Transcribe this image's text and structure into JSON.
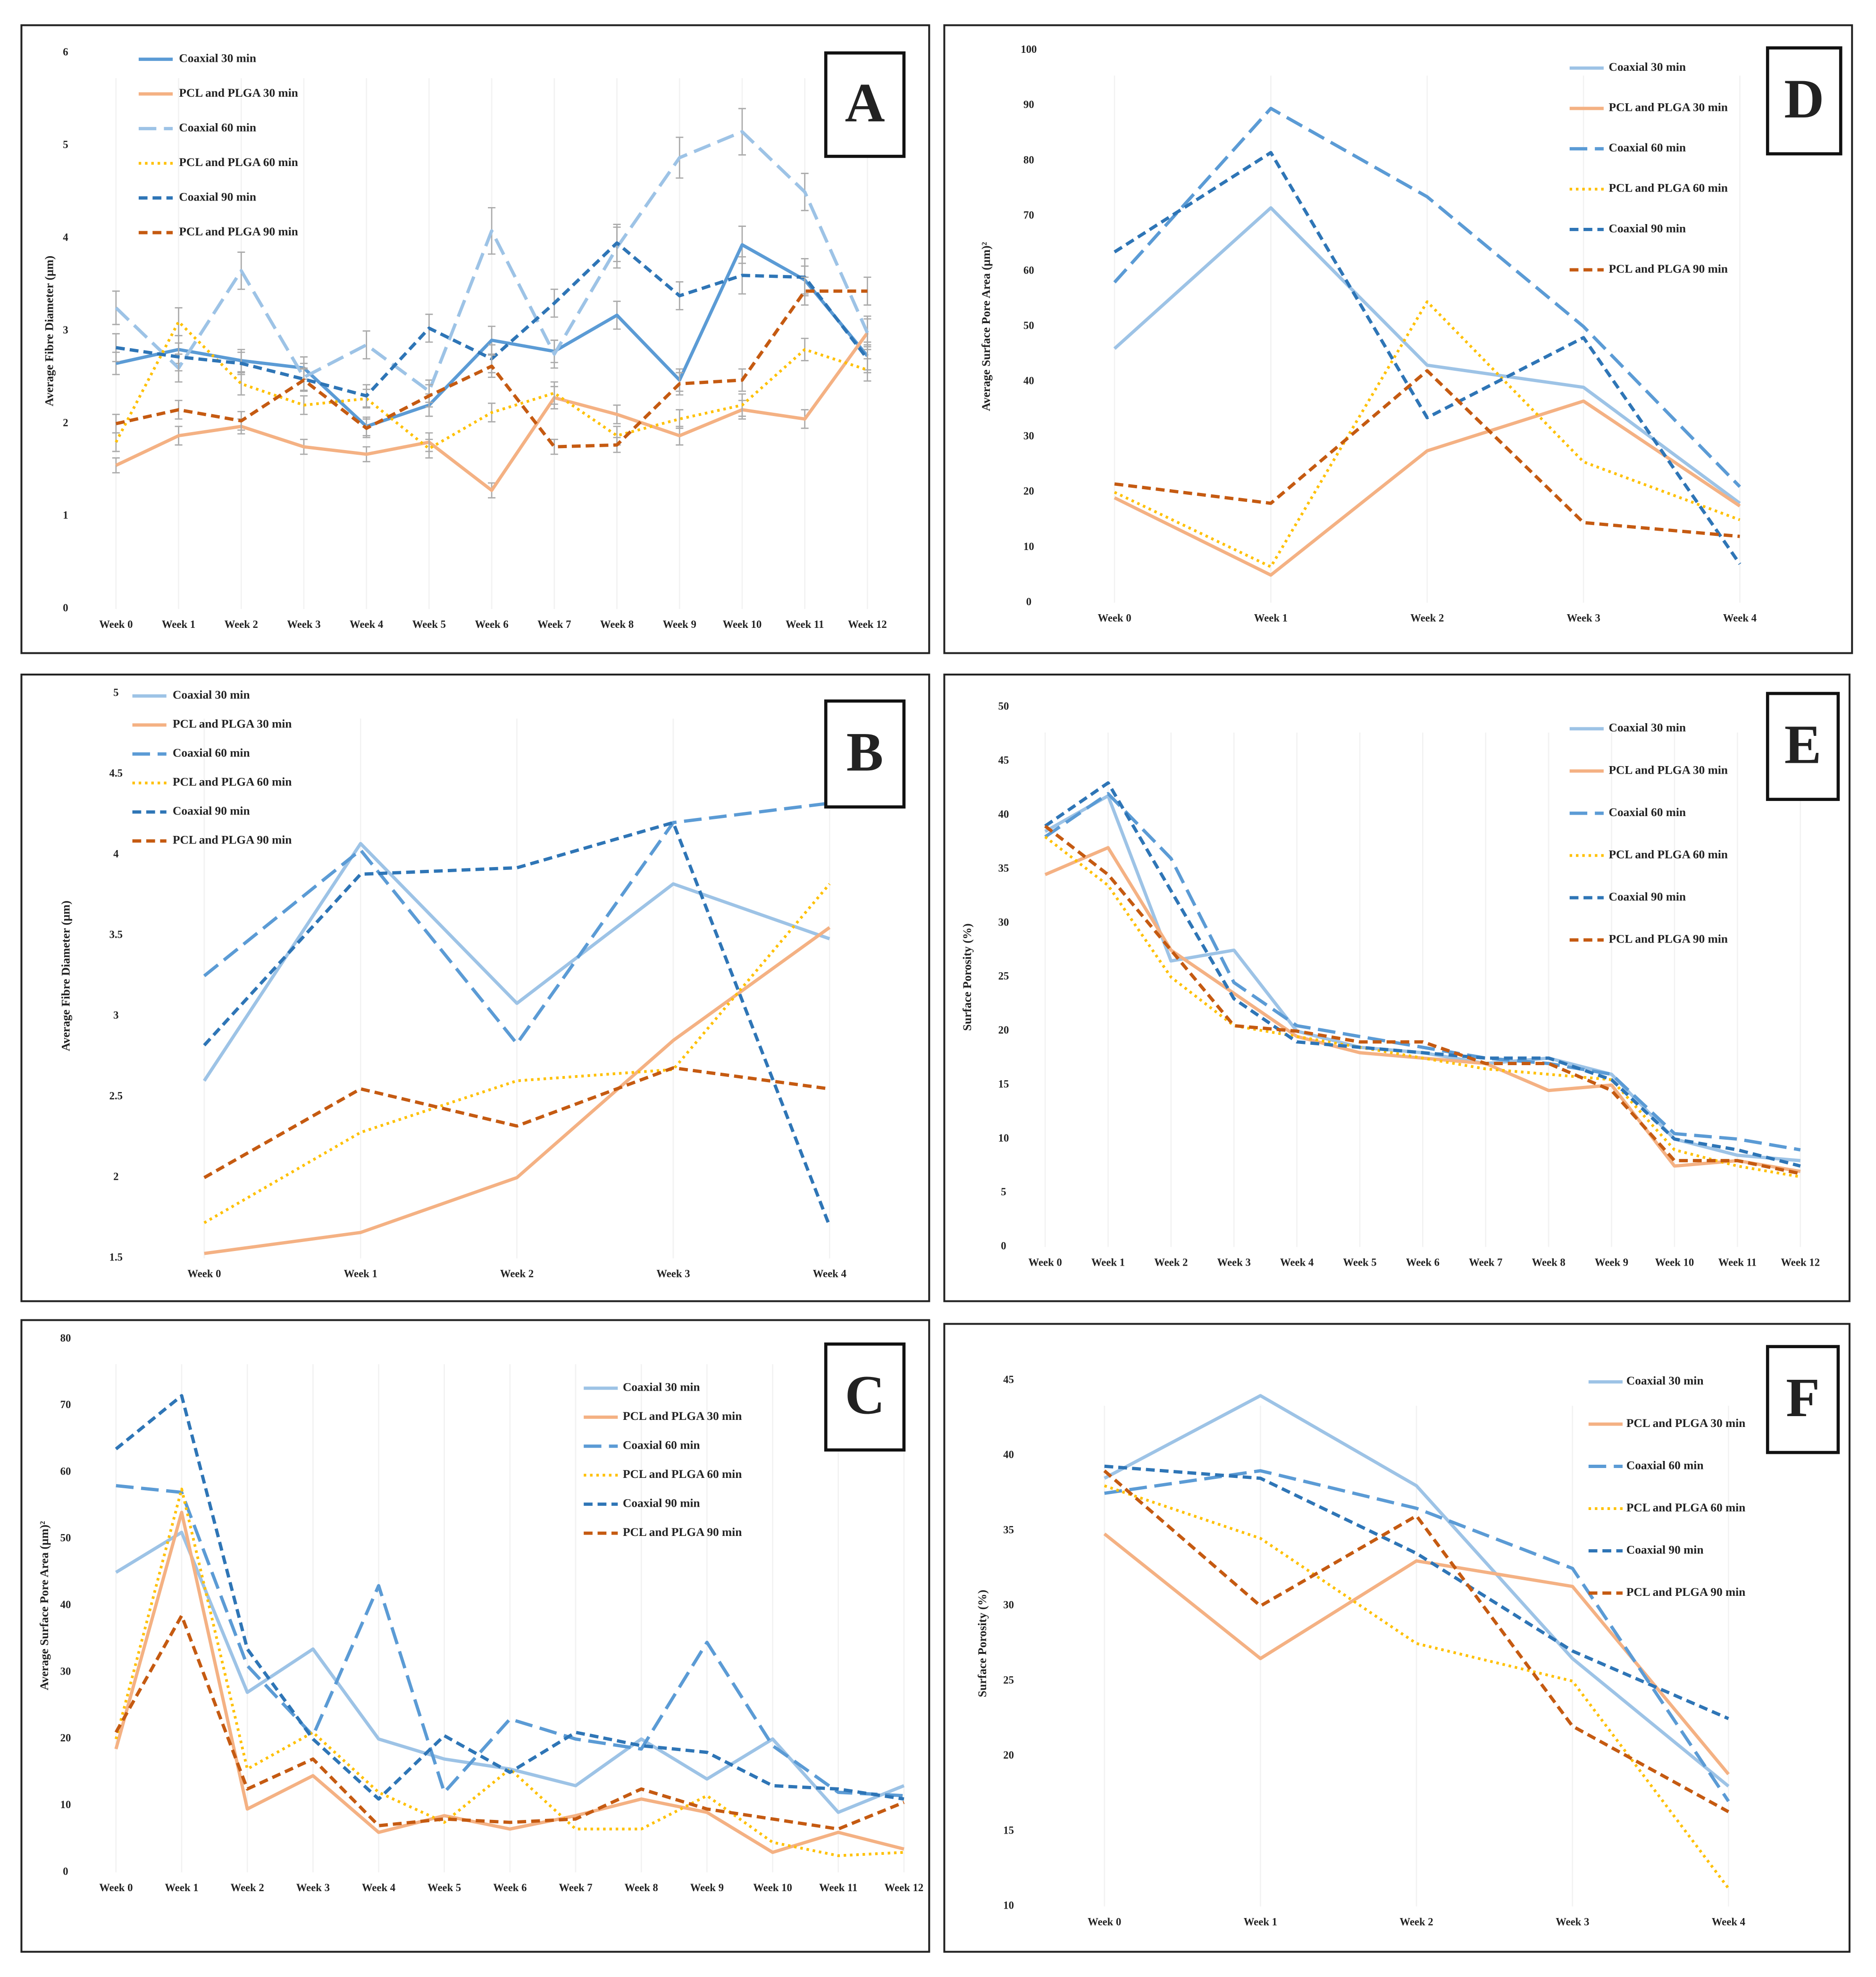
{
  "chart_data": [
    {
      "type": "line",
      "label": "A",
      "y_label": "Average Fibre Diameter (μm)",
      "categories": [
        "Week 0",
        "Week 1",
        "Week 2",
        "Week 3",
        "Week 4",
        "Week 5",
        "Week 6",
        "Week 7",
        "Week 8",
        "Week 9",
        "Week 10",
        "Week 11",
        "Week 12"
      ],
      "ylim": [
        0,
        6
      ],
      "yticks": [
        0,
        1,
        2,
        3,
        4,
        5,
        6
      ],
      "series": [
        {
          "name": "Coaxial 30 min",
          "color": "#5b9bd5",
          "style": "solid",
          "values": [
            2.65,
            2.8,
            2.68,
            2.6,
            1.97,
            2.2,
            2.9,
            2.78,
            3.17,
            2.47,
            3.93,
            3.55,
            2.73
          ],
          "errors": [
            0.12,
            0.15,
            0.12,
            0.12,
            0.1,
            0.12,
            0.15,
            0.12,
            0.15,
            0.12,
            0.2,
            0.15,
            0.15
          ]
        },
        {
          "name": "PCL and PLGA 30 min",
          "color": "#f4b183",
          "style": "solid",
          "values": [
            1.55,
            1.87,
            1.97,
            1.75,
            1.67,
            1.8,
            1.28,
            2.28,
            2.1,
            1.87,
            2.15,
            2.05,
            2.98
          ],
          "errors": [
            0.08,
            0.1,
            0.08,
            0.08,
            0.08,
            0.1,
            0.08,
            0.12,
            0.1,
            0.1,
            0.1,
            0.1,
            0.15
          ]
        },
        {
          "name": "Coaxial 60 min",
          "color": "#9dc3e6",
          "style": "long",
          "values": [
            3.25,
            2.6,
            3.65,
            2.5,
            2.85,
            2.35,
            4.08,
            2.75,
            3.9,
            4.87,
            5.15,
            4.5,
            2.98
          ],
          "errors": [
            0.18,
            0.15,
            0.2,
            0.15,
            0.15,
            0.12,
            0.25,
            0.15,
            0.22,
            0.22,
            0.25,
            0.2,
            0.18
          ]
        },
        {
          "name": "PCL and PLGA 60 min",
          "color": "#ffc000",
          "style": "dot",
          "values": [
            1.8,
            3.1,
            2.43,
            2.2,
            2.27,
            1.73,
            2.12,
            2.33,
            1.87,
            2.05,
            2.2,
            2.8,
            2.58
          ],
          "errors": [
            0.1,
            0.15,
            0.12,
            0.1,
            0.1,
            0.1,
            0.1,
            0.12,
            0.1,
            0.1,
            0.12,
            0.12,
            0.12
          ]
        },
        {
          "name": "Coaxial 90 min",
          "color": "#2e75b6",
          "style": "dash",
          "values": [
            2.82,
            2.72,
            2.65,
            2.48,
            2.3,
            3.03,
            2.7,
            3.3,
            3.95,
            3.38,
            3.6,
            3.58,
            2.7
          ],
          "errors": [
            0.15,
            0.15,
            0.12,
            0.12,
            0.12,
            0.15,
            0.15,
            0.15,
            0.2,
            0.15,
            0.2,
            0.2,
            0.15
          ]
        },
        {
          "name": "PCL and PLGA 90 min",
          "color": "#c55a11",
          "style": "dash",
          "values": [
            2.0,
            2.15,
            2.03,
            2.47,
            1.95,
            2.3,
            2.62,
            1.75,
            1.77,
            2.43,
            2.47,
            3.43,
            3.43
          ],
          "errors": [
            0.1,
            0.1,
            0.1,
            0.12,
            0.1,
            0.12,
            0.12,
            0.08,
            0.08,
            0.12,
            0.12,
            0.15,
            0.15
          ]
        }
      ]
    },
    {
      "type": "line",
      "label": "D",
      "y_label": "Average Surface Pore Area (μm)²",
      "categories": [
        "Week 0",
        "Week 1",
        "Week 2",
        "Week 3",
        "Week 4"
      ],
      "ylim": [
        0,
        100
      ],
      "yticks": [
        0,
        10,
        20,
        30,
        40,
        50,
        60,
        70,
        80,
        90,
        100
      ],
      "series": [
        {
          "name": "Coaxial 30 min",
          "color": "#9dc3e6",
          "style": "solid",
          "values": [
            46,
            71.5,
            43,
            39,
            18
          ]
        },
        {
          "name": "PCL and PLGA 30 min",
          "color": "#f4b183",
          "style": "solid",
          "values": [
            19,
            5,
            27.5,
            36.5,
            17.5
          ]
        },
        {
          "name": "Coaxial 60 min",
          "color": "#5b9bd5",
          "style": "long",
          "values": [
            58,
            89.5,
            73.5,
            50,
            21
          ]
        },
        {
          "name": "PCL and PLGA 60 min",
          "color": "#ffc000",
          "style": "dot",
          "values": [
            20,
            6.5,
            54.5,
            25.5,
            15
          ]
        },
        {
          "name": "Coaxial 90 min",
          "color": "#2e75b6",
          "style": "dash",
          "values": [
            63.5,
            81.5,
            33.5,
            48,
            7
          ]
        },
        {
          "name": "PCL and PLGA 90 min",
          "color": "#c55a11",
          "style": "dash",
          "values": [
            21.5,
            18,
            42,
            14.5,
            12
          ]
        }
      ]
    },
    {
      "type": "line",
      "label": "B",
      "y_label": "Average Fibre Diameter (μm)",
      "categories": [
        "Week 0",
        "Week 1",
        "Week 2",
        "Week 3",
        "Week 4"
      ],
      "ylim": [
        1.5,
        5
      ],
      "yticks": [
        1.5,
        2,
        2.5,
        3,
        3.5,
        4,
        4.5,
        5
      ],
      "series": [
        {
          "name": "Coaxial 30 min",
          "color": "#9dc3e6",
          "style": "solid",
          "values": [
            2.6,
            4.07,
            3.08,
            3.82,
            3.48
          ]
        },
        {
          "name": "PCL and PLGA 30 min",
          "color": "#f4b183",
          "style": "solid",
          "values": [
            1.53,
            1.66,
            2.0,
            2.85,
            3.55
          ]
        },
        {
          "name": "Coaxial 60 min",
          "color": "#5b9bd5",
          "style": "long",
          "values": [
            3.25,
            4.03,
            2.83,
            4.2,
            4.32
          ]
        },
        {
          "name": "PCL and PLGA 60 min",
          "color": "#ffc000",
          "style": "dot",
          "values": [
            1.72,
            2.28,
            2.6,
            2.67,
            3.82
          ]
        },
        {
          "name": "Coaxial 90 min",
          "color": "#2e75b6",
          "style": "dash",
          "values": [
            2.82,
            3.88,
            3.92,
            4.2,
            1.7
          ]
        },
        {
          "name": "PCL and PLGA 90 min",
          "color": "#c55a11",
          "style": "dash",
          "values": [
            2.0,
            2.55,
            2.32,
            2.68,
            2.55
          ]
        }
      ]
    },
    {
      "type": "line",
      "label": "E",
      "y_label": "Surface Porosity (%)",
      "categories": [
        "Week 0",
        "Week 1",
        "Week 2",
        "Week 3",
        "Week 4",
        "Week 5",
        "Week 6",
        "Week 7",
        "Week 8",
        "Week 9",
        "Week 10",
        "Week 11",
        "Week 12"
      ],
      "ylim": [
        0,
        50
      ],
      "yticks": [
        0,
        5,
        10,
        15,
        20,
        25,
        30,
        35,
        40,
        45,
        50
      ],
      "series": [
        {
          "name": "Coaxial 30 min",
          "color": "#9dc3e6",
          "style": "solid",
          "values": [
            38.5,
            41.8,
            26.5,
            27.5,
            20,
            18.5,
            18,
            17,
            17.5,
            16,
            10,
            8.5,
            8
          ]
        },
        {
          "name": "PCL and PLGA 30 min",
          "color": "#f4b183",
          "style": "solid",
          "values": [
            34.5,
            37,
            27.5,
            23.5,
            19.5,
            18,
            17.5,
            17,
            14.5,
            15,
            7.5,
            8,
            7
          ]
        },
        {
          "name": "Coaxial 60 min",
          "color": "#5b9bd5",
          "style": "long",
          "values": [
            38,
            42,
            36,
            24.5,
            20.5,
            19.5,
            18.5,
            17.5,
            17,
            16,
            10.5,
            10,
            9
          ]
        },
        {
          "name": "PCL and PLGA 60 min",
          "color": "#ffc000",
          "style": "dot",
          "values": [
            38,
            33.5,
            25,
            20.5,
            19.5,
            18.5,
            17.5,
            16.5,
            16,
            15.5,
            9,
            7.5,
            6.5
          ]
        },
        {
          "name": "Coaxial 90 min",
          "color": "#2e75b6",
          "style": "dash",
          "values": [
            39,
            43,
            33,
            23,
            19,
            18.5,
            18,
            17.5,
            17.5,
            15.5,
            10,
            9,
            7.5
          ]
        },
        {
          "name": "PCL and PLGA 90 min",
          "color": "#c55a11",
          "style": "dash",
          "values": [
            39,
            34.5,
            27.5,
            20.5,
            20,
            19,
            19,
            17,
            17,
            14.5,
            8,
            8,
            6.8
          ]
        }
      ]
    },
    {
      "type": "line",
      "label": "C",
      "y_label": "Average Surface Pore Area (μm)²",
      "categories": [
        "Week 0",
        "Week 1",
        "Week 2",
        "Week 3",
        "Week 4",
        "Week 5",
        "Week 6",
        "Week 7",
        "Week 8",
        "Week 9",
        "Week 10",
        "Week 11",
        "Week 12"
      ],
      "ylim": [
        0,
        80
      ],
      "yticks": [
        0,
        10,
        20,
        30,
        40,
        50,
        60,
        70,
        80
      ],
      "series": [
        {
          "name": "Coaxial 30 min",
          "color": "#9dc3e6",
          "style": "solid",
          "values": [
            45,
            51,
            27,
            33.5,
            20,
            17,
            15.5,
            13,
            20,
            14,
            20,
            9,
            13
          ]
        },
        {
          "name": "PCL and PLGA 30 min",
          "color": "#f4b183",
          "style": "solid",
          "values": [
            18.5,
            54,
            9.5,
            14.5,
            6,
            8.5,
            6.5,
            8.5,
            11,
            9,
            3,
            6,
            3.5
          ]
        },
        {
          "name": "Coaxial 60 min",
          "color": "#5b9bd5",
          "style": "long",
          "values": [
            58,
            57,
            31,
            20.5,
            43,
            12,
            23,
            20,
            18.5,
            34.5,
            19,
            12,
            11.5
          ]
        },
        {
          "name": "PCL and PLGA 60 min",
          "color": "#ffc000",
          "style": "dot",
          "values": [
            20,
            57.5,
            15.5,
            21,
            12,
            7.5,
            15.5,
            6.5,
            6.5,
            11.5,
            4.5,
            2.5,
            3
          ]
        },
        {
          "name": "Coaxial 90 min",
          "color": "#2e75b6",
          "style": "dash",
          "values": [
            63.5,
            71.5,
            33.5,
            20,
            11,
            20.5,
            15,
            21,
            19,
            18,
            13,
            12.5,
            11
          ]
        },
        {
          "name": "PCL and PLGA 90 min",
          "color": "#c55a11",
          "style": "dash",
          "values": [
            21,
            38.5,
            12.5,
            17,
            7,
            8,
            7.5,
            8,
            12.5,
            9.5,
            8,
            6.5,
            10.5
          ]
        }
      ]
    },
    {
      "type": "line",
      "label": "F",
      "y_label": "Surface Porosity (%)",
      "categories": [
        "Week 0",
        "Week 1",
        "Week 2",
        "Week 3",
        "Week 4"
      ],
      "ylim": [
        10,
        45
      ],
      "yticks": [
        10,
        15,
        20,
        25,
        30,
        35,
        40,
        45
      ],
      "series": [
        {
          "name": "Coaxial 30 min",
          "color": "#9dc3e6",
          "style": "solid",
          "values": [
            38.5,
            44,
            38,
            26.5,
            18
          ]
        },
        {
          "name": "PCL and PLGA 30 min",
          "color": "#f4b183",
          "style": "solid",
          "values": [
            34.8,
            26.5,
            33,
            31.3,
            18.8
          ]
        },
        {
          "name": "Coaxial 60 min",
          "color": "#5b9bd5",
          "style": "long",
          "values": [
            37.5,
            39,
            36.5,
            32.5,
            17
          ]
        },
        {
          "name": "PCL and PLGA 60 min",
          "color": "#ffc000",
          "style": "dot",
          "values": [
            38,
            34.5,
            27.5,
            25,
            11.2
          ]
        },
        {
          "name": "Coaxial 90 min",
          "color": "#2e75b6",
          "style": "dash",
          "values": [
            39.3,
            38.5,
            33.5,
            27,
            22.5
          ]
        },
        {
          "name": "PCL and PLGA 90 min",
          "color": "#c55a11",
          "style": "dash",
          "values": [
            39,
            30,
            36,
            22,
            16.3
          ]
        }
      ]
    }
  ]
}
